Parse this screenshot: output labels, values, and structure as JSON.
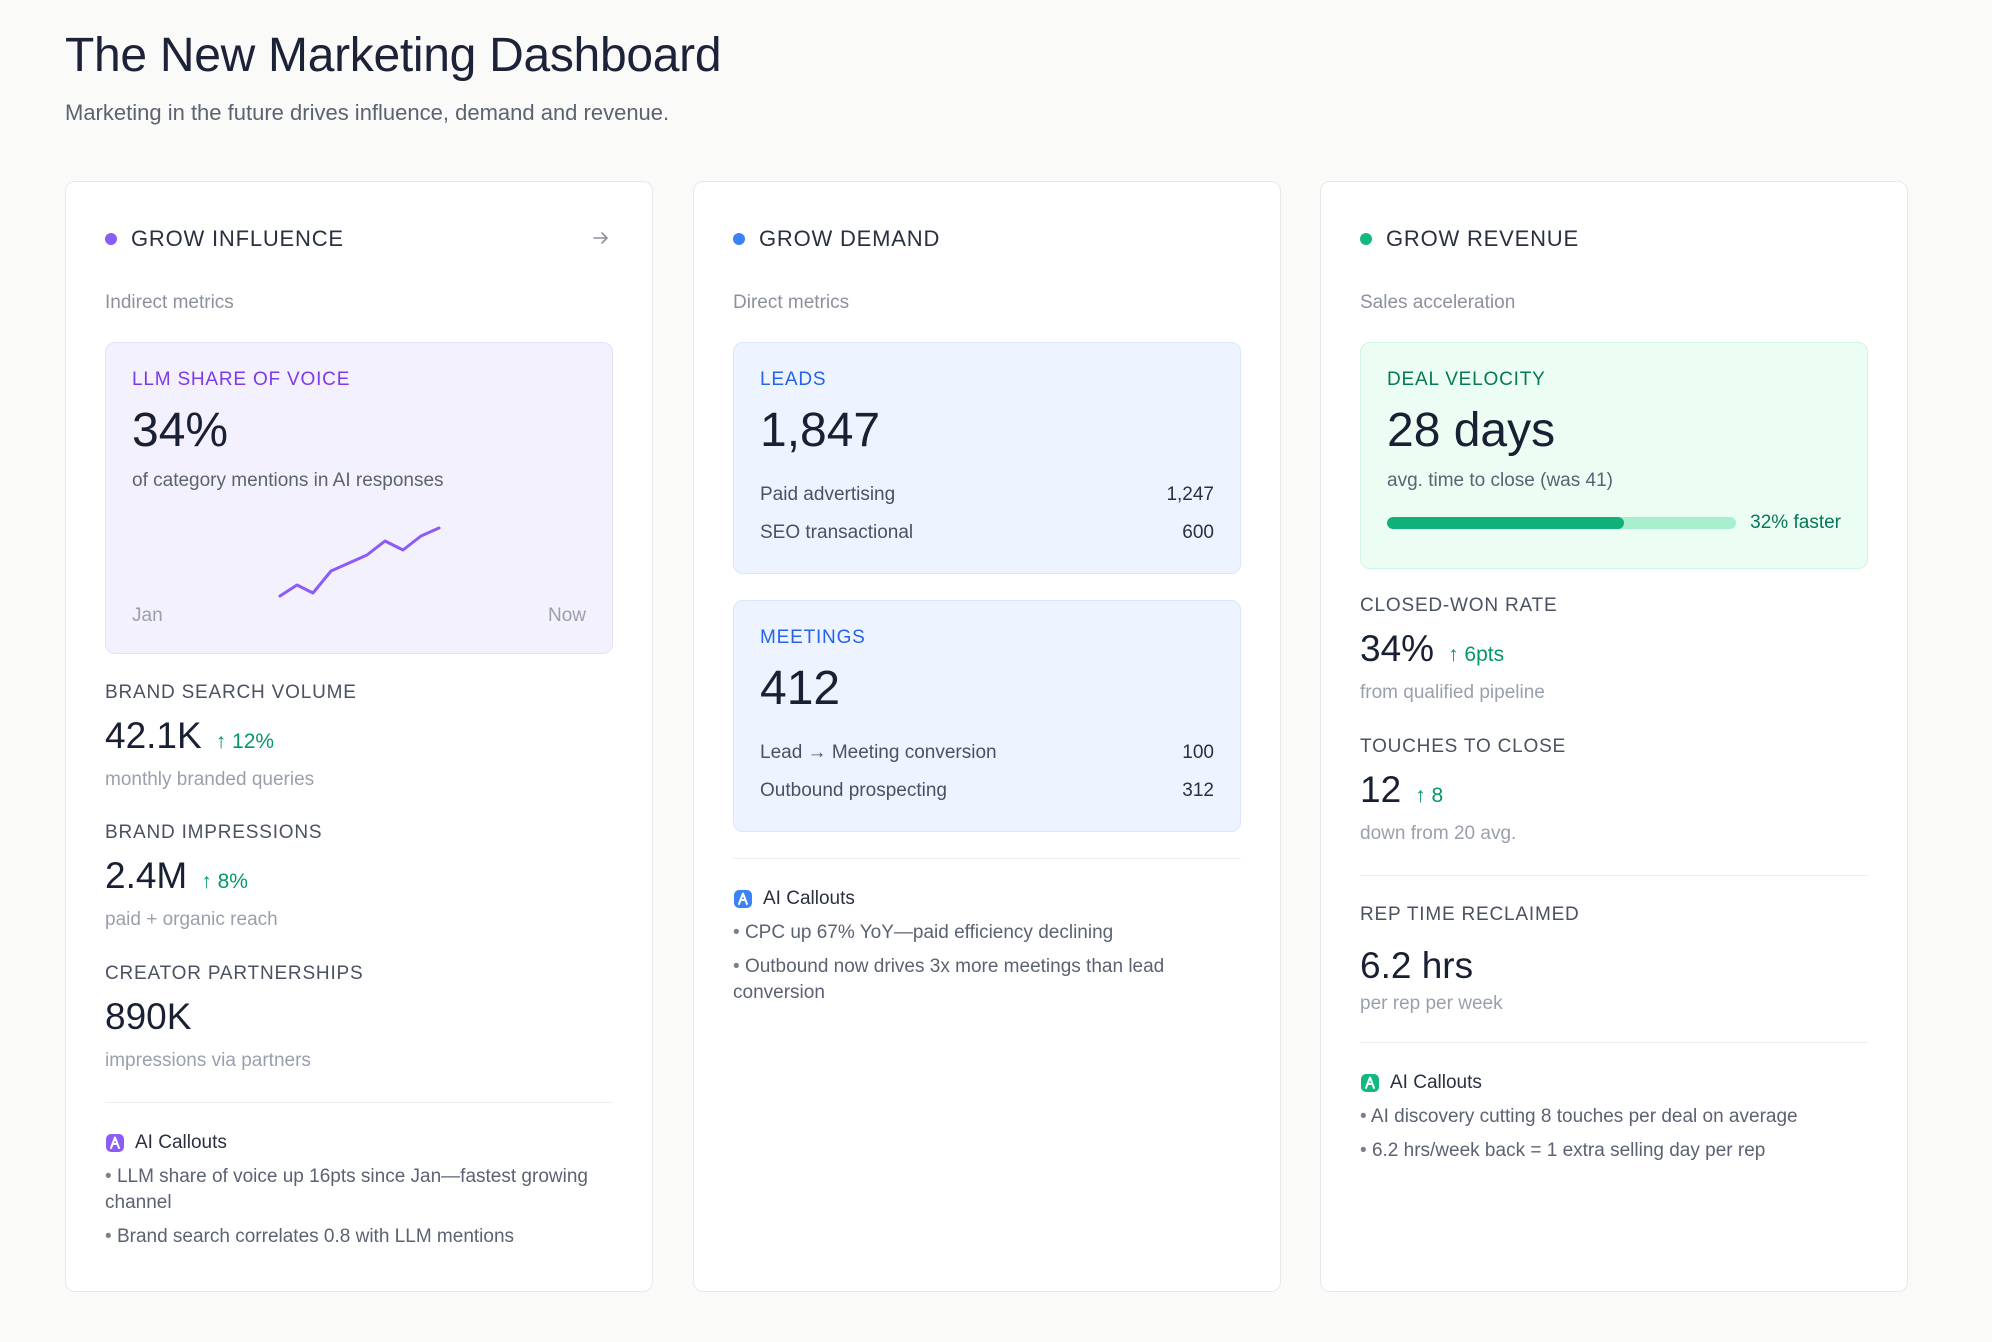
{
  "header": {
    "title": "The New Marketing Dashboard",
    "subtitle": "Marketing in the future drives influence, demand and revenue."
  },
  "colors": {
    "influence": "#8b5cf6",
    "demand": "#3b82f6",
    "revenue": "#10b981",
    "positive_delta": "#059669"
  },
  "influence": {
    "heading": "GROW INFLUENCE",
    "arrow_icon": "arrow-right-icon",
    "subheading": "Indirect metrics",
    "hero": {
      "label": "LLM SHARE OF VOICE",
      "value": "34%",
      "description": "of category mentions in AI responses",
      "sparkline_start": "Jan",
      "sparkline_end": "Now"
    },
    "metrics": [
      {
        "label": "BRAND SEARCH VOLUME",
        "value": "42.1K",
        "delta": "↑ 12%",
        "description": "monthly branded queries"
      },
      {
        "label": "BRAND IMPRESSIONS",
        "value": "2.4M",
        "delta": "↑ 8%",
        "description": "paid + organic reach"
      },
      {
        "label": "CREATOR PARTNERSHIPS",
        "value": "890K",
        "description": "impressions via partners"
      }
    ],
    "callouts": {
      "title": "AI Callouts",
      "items": [
        "LLM share of voice up 16pts since Jan—fastest growing channel",
        "Brand search correlates 0.8 with LLM mentions"
      ]
    }
  },
  "demand": {
    "heading": "GROW DEMAND",
    "subheading": "Direct metrics",
    "leads": {
      "label": "LEADS",
      "value": "1,847",
      "rows": [
        {
          "name": "Paid advertising",
          "value": "1,247"
        },
        {
          "name": "SEO transactional",
          "value": "600"
        }
      ]
    },
    "meetings": {
      "label": "MEETINGS",
      "value": "412",
      "rows": [
        {
          "name": "Lead → Meeting conversion",
          "value": "100"
        },
        {
          "name": "Outbound prospecting",
          "value": "312"
        }
      ]
    },
    "callouts": {
      "title": "AI Callouts",
      "items": [
        "CPC up 67% YoY—paid efficiency declining",
        "Outbound now drives 3x more meetings than lead conversion"
      ]
    }
  },
  "revenue": {
    "heading": "GROW REVENUE",
    "subheading": "Sales acceleration",
    "hero": {
      "label": "DEAL VELOCITY",
      "value": "28 days",
      "description": "avg. time to close (was 41)",
      "progress": 0.68,
      "progress_label": "32% faster"
    },
    "metrics": [
      {
        "label": "CLOSED-WON RATE",
        "value": "34%",
        "delta": "↑ 6pts",
        "description": "from qualified pipeline"
      },
      {
        "label": "TOUCHES TO CLOSE",
        "value": "12",
        "delta": "↑ 8",
        "description": "down from 20 avg."
      },
      {
        "label": "REP TIME RECLAIMED",
        "value": "6.2 hrs",
        "description": "per rep per week"
      }
    ],
    "callouts": {
      "title": "AI Callouts",
      "items": [
        "AI discovery cutting 8 touches per deal on average",
        "6.2 hrs/week back = 1 extra selling day per rep"
      ]
    }
  }
}
